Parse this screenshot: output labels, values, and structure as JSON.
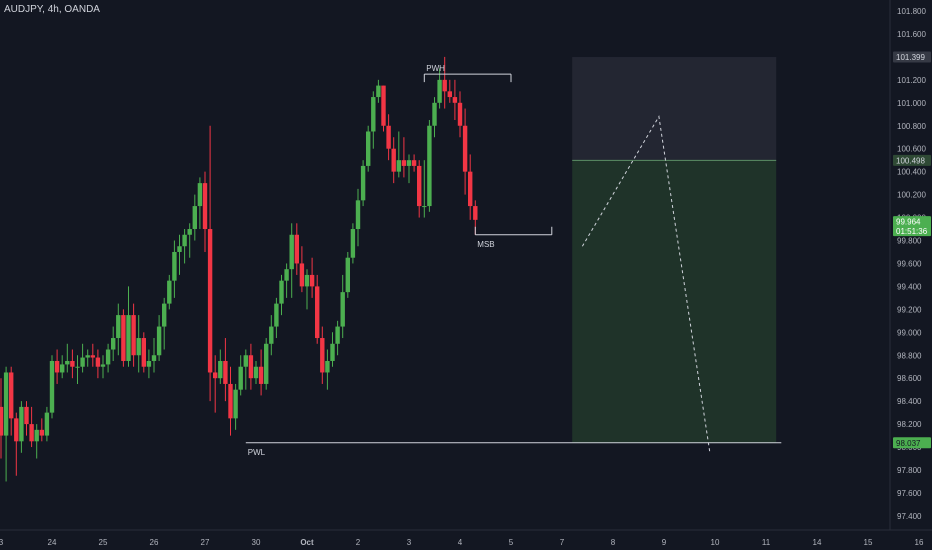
{
  "header": {
    "symbol_line": "AUDJPY, 4h, OANDA"
  },
  "colors": {
    "background": "#131722",
    "up": "#4caf50",
    "down": "#f23645",
    "axis_text": "#b2b5be",
    "grid": "#1f2330"
  },
  "chart_data": {
    "type": "candlestick",
    "title": "AUDJPY, 4h, OANDA",
    "ylim": [
      97.3,
      101.9
    ],
    "y_ticks": [
      "101.800",
      "101.600",
      "101.400",
      "101.200",
      "101.000",
      "100.800",
      "100.600",
      "100.400",
      "100.200",
      "100.000",
      "99.800",
      "99.600",
      "99.400",
      "99.200",
      "99.000",
      "98.800",
      "98.600",
      "98.400",
      "98.200",
      "98.000",
      "97.800",
      "97.600",
      "97.400"
    ],
    "x_ticks": [
      {
        "label": "3",
        "bar": 0
      },
      {
        "label": "24",
        "bar": 10
      },
      {
        "label": "25",
        "bar": 20
      },
      {
        "label": "26",
        "bar": 30
      },
      {
        "label": "27",
        "bar": 40
      },
      {
        "label": "30",
        "bar": 50
      },
      {
        "label": "Oct",
        "bar": 60
      },
      {
        "label": "2",
        "bar": 70
      },
      {
        "label": "3",
        "bar": 80
      },
      {
        "label": "4",
        "bar": 90
      },
      {
        "label": "5",
        "bar": 100
      },
      {
        "label": "7",
        "bar": 110
      },
      {
        "label": "8",
        "bar": 120
      },
      {
        "label": "9",
        "bar": 130
      },
      {
        "label": "10",
        "bar": 140
      },
      {
        "label": "11",
        "bar": 150
      },
      {
        "label": "14",
        "bar": 160
      },
      {
        "label": "15",
        "bar": 170
      },
      {
        "label": "16",
        "bar": 180
      }
    ],
    "candles": [
      [
        98.35,
        98.6,
        97.9,
        98.1
      ],
      [
        98.1,
        98.7,
        97.7,
        98.65
      ],
      [
        98.65,
        98.7,
        98.1,
        98.25
      ],
      [
        98.25,
        98.3,
        97.75,
        98.05
      ],
      [
        98.05,
        98.4,
        97.95,
        98.35
      ],
      [
        98.35,
        98.4,
        98.1,
        98.2
      ],
      [
        98.2,
        98.35,
        98.0,
        98.05
      ],
      [
        98.05,
        98.2,
        97.9,
        98.15
      ],
      [
        98.15,
        98.25,
        98.05,
        98.1
      ],
      [
        98.1,
        98.35,
        98.05,
        98.3
      ],
      [
        98.3,
        98.8,
        98.25,
        98.75
      ],
      [
        98.75,
        98.85,
        98.55,
        98.65
      ],
      [
        98.65,
        98.8,
        98.6,
        98.72
      ],
      [
        98.72,
        98.9,
        98.65,
        98.75
      ],
      [
        98.75,
        98.85,
        98.6,
        98.7
      ],
      [
        98.7,
        98.8,
        98.55,
        98.7
      ],
      [
        98.7,
        98.9,
        98.65,
        98.78
      ],
      [
        98.78,
        98.85,
        98.7,
        98.8
      ],
      [
        98.8,
        98.9,
        98.7,
        98.78
      ],
      [
        98.78,
        98.85,
        98.6,
        98.7
      ],
      [
        98.7,
        98.8,
        98.6,
        98.72
      ],
      [
        98.72,
        98.9,
        98.65,
        98.85
      ],
      [
        98.85,
        99.05,
        98.75,
        98.95
      ],
      [
        98.95,
        99.25,
        98.8,
        99.15
      ],
      [
        99.15,
        99.2,
        98.7,
        98.75
      ],
      [
        98.75,
        99.4,
        98.7,
        99.15
      ],
      [
        99.15,
        99.25,
        98.7,
        98.8
      ],
      [
        98.8,
        99.15,
        98.65,
        98.95
      ],
      [
        98.95,
        99.0,
        98.65,
        98.7
      ],
      [
        98.7,
        98.85,
        98.6,
        98.75
      ],
      [
        98.75,
        98.95,
        98.65,
        98.8
      ],
      [
        98.8,
        99.15,
        98.75,
        99.05
      ],
      [
        99.05,
        99.3,
        98.85,
        99.25
      ],
      [
        99.25,
        99.5,
        99.2,
        99.45
      ],
      [
        99.45,
        99.8,
        99.3,
        99.7
      ],
      [
        99.7,
        99.85,
        99.5,
        99.75
      ],
      [
        99.75,
        99.9,
        99.6,
        99.85
      ],
      [
        99.85,
        99.95,
        99.65,
        99.9
      ],
      [
        99.9,
        100.2,
        99.8,
        100.1
      ],
      [
        100.1,
        100.35,
        99.9,
        100.3
      ],
      [
        100.3,
        100.4,
        99.7,
        99.9
      ],
      [
        99.9,
        100.8,
        98.4,
        98.65
      ],
      [
        98.65,
        98.8,
        98.3,
        98.6
      ],
      [
        98.6,
        98.85,
        98.55,
        98.75
      ],
      [
        98.75,
        98.95,
        98.4,
        98.55
      ],
      [
        98.55,
        98.7,
        98.1,
        98.25
      ],
      [
        98.25,
        98.55,
        98.15,
        98.5
      ],
      [
        98.5,
        98.8,
        98.45,
        98.7
      ],
      [
        98.7,
        98.85,
        98.5,
        98.8
      ],
      [
        98.8,
        98.9,
        98.5,
        98.6
      ],
      [
        98.6,
        98.75,
        98.55,
        98.7
      ],
      [
        98.7,
        98.85,
        98.45,
        98.55
      ],
      [
        98.55,
        98.95,
        98.5,
        98.9
      ],
      [
        98.9,
        99.15,
        98.8,
        99.05
      ],
      [
        99.05,
        99.3,
        98.95,
        99.25
      ],
      [
        99.25,
        99.5,
        99.15,
        99.45
      ],
      [
        99.45,
        99.6,
        99.3,
        99.55
      ],
      [
        99.55,
        99.95,
        99.3,
        99.85
      ],
      [
        99.85,
        99.95,
        99.5,
        99.6
      ],
      [
        99.6,
        99.75,
        99.35,
        99.4
      ],
      [
        99.4,
        99.55,
        99.2,
        99.5
      ],
      [
        99.5,
        99.65,
        99.3,
        99.4
      ],
      [
        99.4,
        99.5,
        98.9,
        98.95
      ],
      [
        98.95,
        99.05,
        98.55,
        98.65
      ],
      [
        98.65,
        98.85,
        98.5,
        98.75
      ],
      [
        98.75,
        99.0,
        98.7,
        98.9
      ],
      [
        98.9,
        99.1,
        98.8,
        99.05
      ],
      [
        99.05,
        99.5,
        98.95,
        99.35
      ],
      [
        99.35,
        99.7,
        99.3,
        99.65
      ],
      [
        99.65,
        99.95,
        99.6,
        99.9
      ],
      [
        99.9,
        100.25,
        99.75,
        100.15
      ],
      [
        100.15,
        100.5,
        100.1,
        100.45
      ],
      [
        100.45,
        100.8,
        100.4,
        100.75
      ],
      [
        100.75,
        101.1,
        100.6,
        101.05
      ],
      [
        101.05,
        101.2,
        101.0,
        101.15
      ],
      [
        101.15,
        101.15,
        100.75,
        100.8
      ],
      [
        100.8,
        100.9,
        100.5,
        100.6
      ],
      [
        100.6,
        100.7,
        100.3,
        100.4
      ],
      [
        100.4,
        100.75,
        100.35,
        100.5
      ],
      [
        100.5,
        100.7,
        100.35,
        100.45
      ],
      [
        100.45,
        100.55,
        100.3,
        100.5
      ],
      [
        100.5,
        100.55,
        100.4,
        100.45
      ],
      [
        100.45,
        100.5,
        100.0,
        100.1
      ],
      [
        100.1,
        100.5,
        100.0,
        100.1
      ],
      [
        100.1,
        100.85,
        100.05,
        100.8
      ],
      [
        100.8,
        101.05,
        100.7,
        101.0
      ],
      [
        101.0,
        101.3,
        100.95,
        101.2
      ],
      [
        101.2,
        101.4,
        100.95,
        101.1
      ],
      [
        101.1,
        101.2,
        101.0,
        101.05
      ],
      [
        101.05,
        101.2,
        100.85,
        101.0
      ],
      [
        101.0,
        101.1,
        100.7,
        100.8
      ],
      [
        100.8,
        100.95,
        100.2,
        100.4
      ],
      [
        100.4,
        100.55,
        99.98,
        100.1
      ],
      [
        100.1,
        100.15,
        99.85,
        99.98
      ]
    ],
    "price_labels": [
      {
        "text": "101.399",
        "price": 101.399,
        "bg": "#363a45",
        "fg": "#d1d4dc"
      },
      {
        "text": "100.498",
        "price": 100.498,
        "bg": "#2f4a35",
        "fg": "#d1d4dc"
      },
      {
        "text": "99.964",
        "sub": "01:51:36",
        "price": 99.964,
        "bg": "#4caf50",
        "fg": "#ffffff"
      },
      {
        "text": "98.037",
        "price": 98.037,
        "bg": "#4caf50",
        "fg": "#131722"
      }
    ],
    "annotations": [
      {
        "label": "PWH",
        "price": 101.25,
        "bar_from": 83,
        "bar_to": 100
      },
      {
        "label": "MSB",
        "price": 99.85,
        "bar_from": 93,
        "bar_to": 108
      },
      {
        "label": "PWL",
        "price": 98.037,
        "bar_from": 48,
        "bar_to": 153
      }
    ],
    "position": {
      "entry": 100.498,
      "stop": 101.399,
      "target": 98.037,
      "bar_from": 112,
      "bar_to": 152
    },
    "projection": [
      {
        "bar": 114,
        "price": 99.75
      },
      {
        "bar": 129,
        "price": 100.88
      },
      {
        "bar": 139,
        "price": 97.95
      }
    ]
  }
}
